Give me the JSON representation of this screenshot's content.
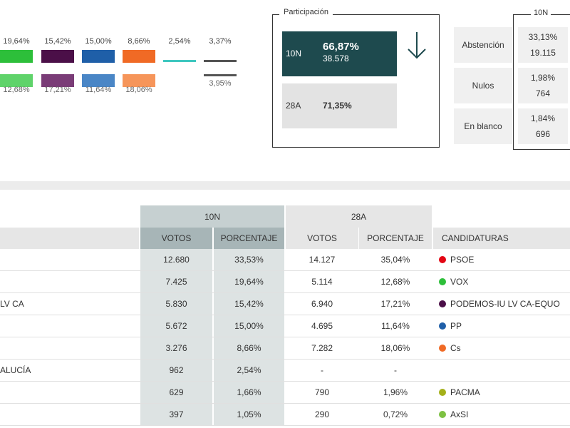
{
  "bars": [
    {
      "pct_10n": "19,64%",
      "pct_28a": "12,68%",
      "color_10n": "#2dbf3a",
      "color_28a": "#5fd36a",
      "style": "solid"
    },
    {
      "pct_10n": "15,42%",
      "pct_28a": "17,21%",
      "color_10n": "#4b0f48",
      "color_28a": "#7a3c77",
      "style": "solid"
    },
    {
      "pct_10n": "15,00%",
      "pct_28a": "11,64%",
      "color_10n": "#1f5fa8",
      "color_28a": "#4a86c6",
      "style": "solid"
    },
    {
      "pct_10n": "8,66%",
      "pct_28a": "18,06%",
      "color_10n": "#f06a25",
      "color_28a": "#f6955a",
      "style": "solid"
    },
    {
      "pct_10n": "2,54%",
      "pct_28a": "",
      "color_10n": "#3fc7c0",
      "color_28a": "",
      "style": "line"
    },
    {
      "pct_10n": "3,37%",
      "pct_28a": "3,95%",
      "color_10n": "#555555",
      "color_28a": "#555555",
      "style": "line"
    }
  ],
  "participation": {
    "title": "Participación",
    "current": {
      "label": "10N",
      "pct": "66,87%",
      "count": "38.578"
    },
    "previous": {
      "label": "28A",
      "pct": "71,35%"
    },
    "trend_icon": "arrow-down-icon"
  },
  "abstention": {
    "header": "10N",
    "items": [
      {
        "label": "Abstención",
        "pct": "33,13%",
        "count": "19.115"
      },
      {
        "label": "Nulos",
        "pct": "1,98%",
        "count": "764"
      },
      {
        "label": "En blanco",
        "pct": "1,84%",
        "count": "696"
      }
    ]
  },
  "table": {
    "group_10n": "10N",
    "group_28a": "28A",
    "headers": {
      "votos": "VOTOS",
      "porcentaje": "PORCENTAJE",
      "votos_28a": "VOTOS",
      "porcentaje_28a": "PORCENTAJE",
      "candidaturas": "CANDIDATURAS"
    },
    "rows": [
      {
        "name": "",
        "v10": "12.680",
        "p10": "33,53%",
        "v28": "14.127",
        "p28": "35,04%",
        "cand": "PSOE",
        "color": "#e30613"
      },
      {
        "name": "",
        "v10": "7.425",
        "p10": "19,64%",
        "v28": "5.114",
        "p28": "12,68%",
        "cand": "VOX",
        "color": "#2dbf3a"
      },
      {
        "name": "LV CA",
        "v10": "5.830",
        "p10": "15,42%",
        "v28": "6.940",
        "p28": "17,21%",
        "cand": "PODEMOS-IU LV CA-EQUO",
        "color": "#4b0f48"
      },
      {
        "name": "",
        "v10": "5.672",
        "p10": "15,00%",
        "v28": "4.695",
        "p28": "11,64%",
        "cand": "PP",
        "color": "#1f5fa8"
      },
      {
        "name": "",
        "v10": "3.276",
        "p10": "8,66%",
        "v28": "7.282",
        "p28": "18,06%",
        "cand": "Cs",
        "color": "#f06a25"
      },
      {
        "name": "ALUCÍA",
        "v10": "962",
        "p10": "2,54%",
        "v28": "-",
        "p28": "-",
        "cand": "",
        "color": ""
      },
      {
        "name": "",
        "v10": "629",
        "p10": "1,66%",
        "v28": "790",
        "p28": "1,96%",
        "cand": "PACMA",
        "color": "#a4b01a"
      },
      {
        "name": "",
        "v10": "397",
        "p10": "1,05%",
        "v28": "290",
        "p28": "0,72%",
        "cand": "AxSI",
        "color": "#7dc142"
      }
    ]
  }
}
